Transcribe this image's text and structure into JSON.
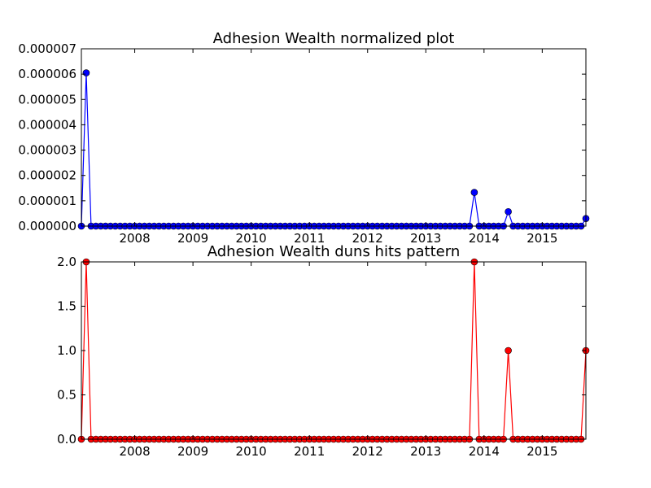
{
  "chart_data": [
    {
      "type": "line",
      "title": "Adhesion Wealth normalized plot",
      "xlabel": "",
      "ylabel": "",
      "xlim": [
        "2007-02",
        "2015-10"
      ],
      "ylim": [
        0,
        7e-06
      ],
      "x_ticks": [
        "2008",
        "2009",
        "2010",
        "2011",
        "2012",
        "2013",
        "2014",
        "2015"
      ],
      "y_ticks": [
        "0.000000",
        "0.000001",
        "0.000002",
        "0.000003",
        "0.000004",
        "0.000005",
        "0.000006",
        "0.000007"
      ],
      "grid": false,
      "color": "#0000ff",
      "series": [
        {
          "points": [
            [
              "2007-02",
              0
            ],
            [
              "2007-03",
              6.05e-06
            ],
            [
              "2007-04",
              0
            ],
            [
              "2013-10",
              0
            ],
            [
              "2013-11",
              1.33e-06
            ],
            [
              "2013-12",
              0
            ],
            [
              "2014-05",
              0
            ],
            [
              "2014-06",
              5.7e-07
            ],
            [
              "2014-07",
              0
            ],
            [
              "2015-09",
              0
            ],
            [
              "2015-10",
              3e-07
            ]
          ]
        }
      ]
    },
    {
      "type": "line",
      "title": "Adhesion Wealth duns hits pattern",
      "xlabel": "",
      "ylabel": "",
      "xlim": [
        "2007-02",
        "2015-10"
      ],
      "ylim": [
        0,
        2
      ],
      "x_ticks": [
        "2008",
        "2009",
        "2010",
        "2011",
        "2012",
        "2013",
        "2014",
        "2015"
      ],
      "y_ticks": [
        "0.0",
        "0.5",
        "1.0",
        "1.5",
        "2.0"
      ],
      "grid": false,
      "color": "#ff0000",
      "series": [
        {
          "points": [
            [
              "2007-02",
              0
            ],
            [
              "2007-03",
              2
            ],
            [
              "2007-04",
              0
            ],
            [
              "2013-10",
              0
            ],
            [
              "2013-11",
              2
            ],
            [
              "2013-12",
              0
            ],
            [
              "2014-05",
              0
            ],
            [
              "2014-06",
              1
            ],
            [
              "2014-07",
              0
            ],
            [
              "2015-09",
              0
            ],
            [
              "2015-10",
              1
            ]
          ]
        }
      ]
    }
  ]
}
